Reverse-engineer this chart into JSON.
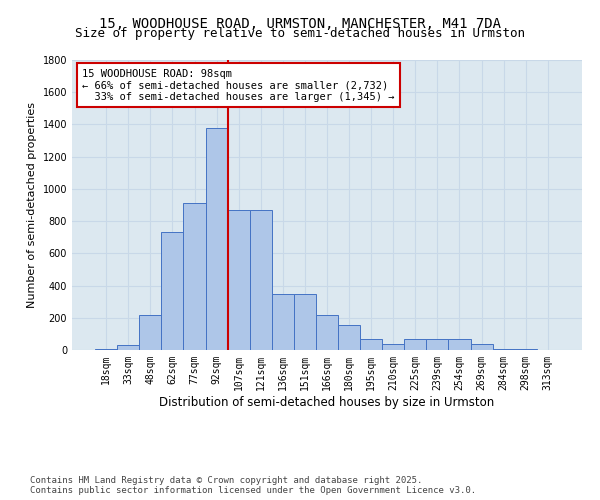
{
  "title_line1": "15, WOODHOUSE ROAD, URMSTON, MANCHESTER, M41 7DA",
  "title_line2": "Size of property relative to semi-detached houses in Urmston",
  "xlabel": "Distribution of semi-detached houses by size in Urmston",
  "ylabel": "Number of semi-detached properties",
  "footer": "Contains HM Land Registry data © Crown copyright and database right 2025.\nContains public sector information licensed under the Open Government Licence v3.0.",
  "categories": [
    "18sqm",
    "33sqm",
    "48sqm",
    "62sqm",
    "77sqm",
    "92sqm",
    "107sqm",
    "121sqm",
    "136sqm",
    "151sqm",
    "166sqm",
    "180sqm",
    "195sqm",
    "210sqm",
    "225sqm",
    "239sqm",
    "254sqm",
    "269sqm",
    "284sqm",
    "298sqm",
    "313sqm"
  ],
  "values": [
    5,
    30,
    220,
    730,
    910,
    1380,
    870,
    870,
    350,
    350,
    215,
    155,
    70,
    35,
    70,
    70,
    70,
    35,
    5,
    5,
    2
  ],
  "bar_color": "#aec6e8",
  "bar_edge_color": "#4472c4",
  "annotation_title": "15 WOODHOUSE ROAD: 98sqm",
  "annotation_line1": "← 66% of semi-detached houses are smaller (2,732)",
  "annotation_line2": "33% of semi-detached houses are larger (1,345) →",
  "annotation_box_color": "#ffffff",
  "annotation_box_edge": "#cc0000",
  "vline_color": "#cc0000",
  "vline_x_index": 5,
  "ylim": [
    0,
    1800
  ],
  "yticks": [
    0,
    200,
    400,
    600,
    800,
    1000,
    1200,
    1400,
    1600,
    1800
  ],
  "grid_color": "#c8d8e8",
  "background_color": "#dce8f0",
  "fig_background": "#ffffff",
  "title1_fontsize": 10,
  "title2_fontsize": 9,
  "xlabel_fontsize": 8.5,
  "ylabel_fontsize": 8,
  "tick_fontsize": 7,
  "annotation_fontsize": 7.5,
  "footer_fontsize": 6.5
}
